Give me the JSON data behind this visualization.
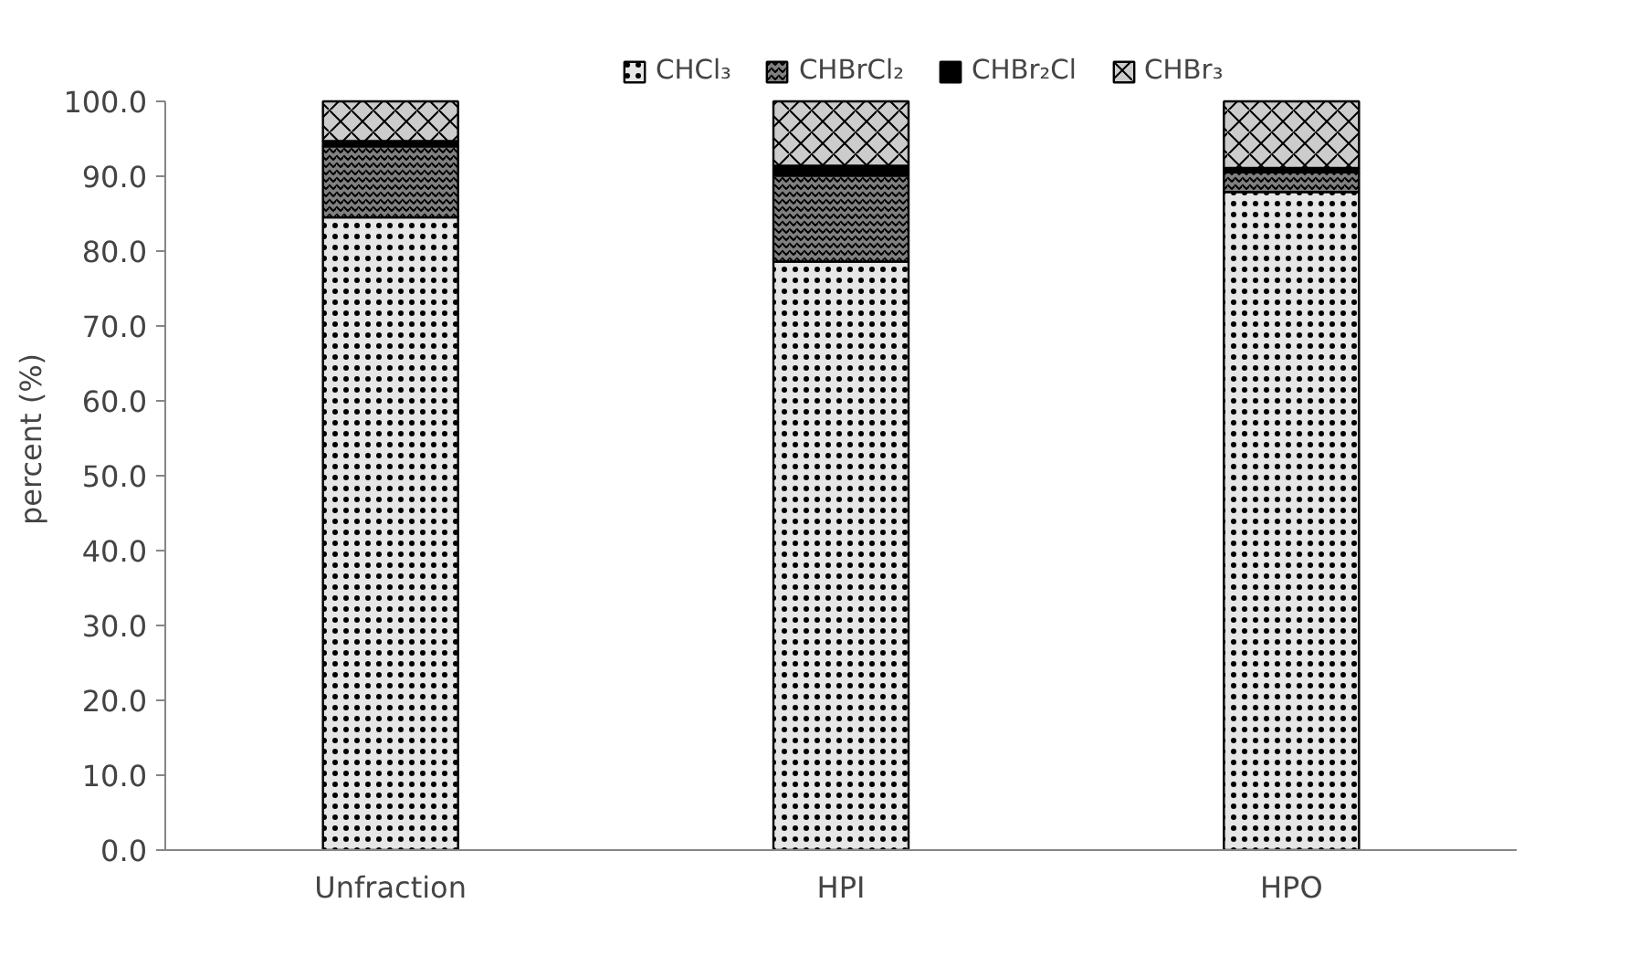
{
  "chart_data": {
    "type": "bar",
    "stacked": true,
    "ylabel": "percent (%)",
    "categories": [
      "Unfraction",
      "HPI",
      "HPO"
    ],
    "series": [
      {
        "name": "CHCl₃",
        "color": "#e6e6e6",
        "values": [
          84.5,
          78.6,
          87.9
        ]
      },
      {
        "name": "CHBrCl₂",
        "color": "#808080",
        "values": [
          9.5,
          11.5,
          2.6
        ]
      },
      {
        "name": "CHBr₂Cl",
        "color": "#000000",
        "values": [
          0.7,
          1.3,
          0.6
        ]
      },
      {
        "name": "CHBr₃",
        "color": "#cccccc",
        "values": [
          5.3,
          8.6,
          8.9
        ]
      }
    ],
    "ylim": [
      0,
      100
    ],
    "yticks": [
      {
        "value": 0,
        "label": "0.0"
      },
      {
        "value": 10,
        "label": "10.0"
      },
      {
        "value": 20,
        "label": "20.0"
      },
      {
        "value": 30,
        "label": "30.0"
      },
      {
        "value": 40,
        "label": "40.0"
      },
      {
        "value": 50,
        "label": "50.0"
      },
      {
        "value": 60,
        "label": "60.0"
      },
      {
        "value": 70,
        "label": "70.0"
      },
      {
        "value": 80,
        "label": "80.0"
      },
      {
        "value": 90,
        "label": "90.0"
      },
      {
        "value": 100,
        "label": "100.0"
      }
    ],
    "grid": false,
    "legend": "top"
  }
}
